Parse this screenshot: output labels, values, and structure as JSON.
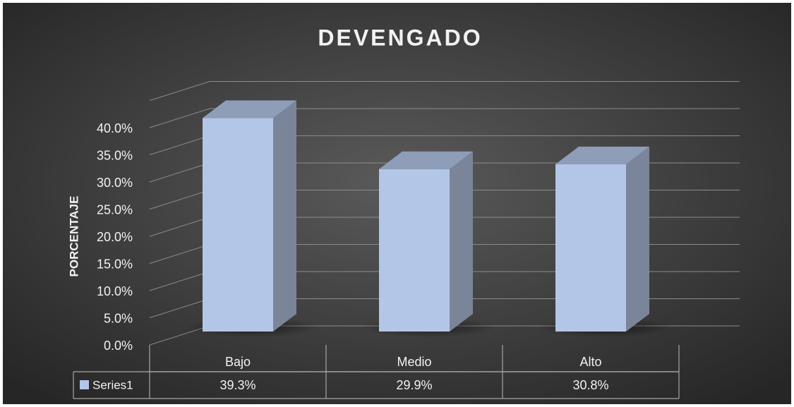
{
  "chart_data": {
    "type": "bar3d",
    "title": "DEVENGADO",
    "ylabel": "PORCENTAJE",
    "categories": [
      "Bajo",
      "Medio",
      "Alto"
    ],
    "series": [
      {
        "name": "Series1",
        "color": "#b4c6e7",
        "values": [
          39.3,
          29.9,
          30.8
        ],
        "value_labels": [
          "39.3%",
          "29.9%",
          "30.8%"
        ]
      }
    ],
    "ylim": [
      0,
      45
    ],
    "yticks": [
      {
        "value": 0,
        "label": "0.0%"
      },
      {
        "value": 5,
        "label": "5.0%"
      },
      {
        "value": 10,
        "label": "10.0%"
      },
      {
        "value": 15,
        "label": "15.0%"
      },
      {
        "value": 20,
        "label": "20.0%"
      },
      {
        "value": 25,
        "label": "25.0%"
      },
      {
        "value": 30,
        "label": "30.0%"
      },
      {
        "value": 35,
        "label": "35.0%"
      },
      {
        "value": 40,
        "label": "40.0%"
      }
    ],
    "grid": true
  }
}
